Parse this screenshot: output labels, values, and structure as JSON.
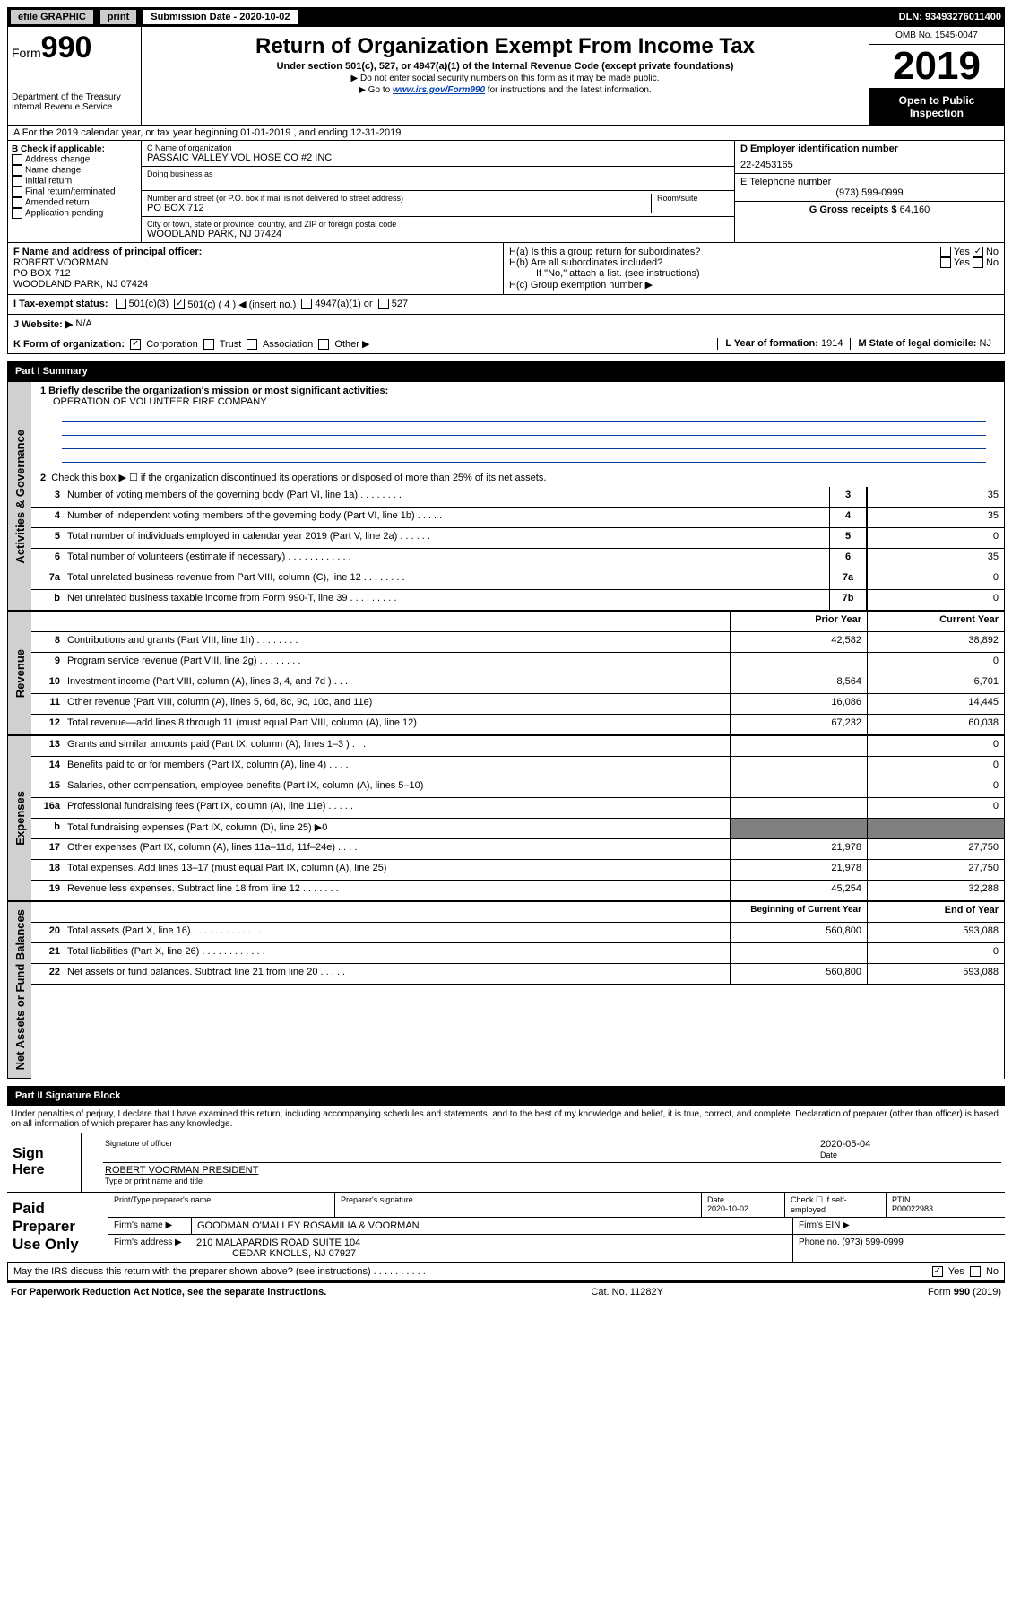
{
  "topbar": {
    "efile": "efile GRAPHIC",
    "print": "print",
    "submission_label": "Submission Date - 2020-10-02",
    "dln": "DLN: 93493276011400"
  },
  "header": {
    "form_prefix": "Form",
    "form_number": "990",
    "dept": "Department of the Treasury",
    "irs": "Internal Revenue Service",
    "title": "Return of Organization Exempt From Income Tax",
    "subtitle": "Under section 501(c), 527, or 4947(a)(1) of the Internal Revenue Code (except private foundations)",
    "note1": "▶ Do not enter social security numbers on this form as it may be made public.",
    "note2_prefix": "▶ Go to ",
    "note2_link": "www.irs.gov/Form990",
    "note2_suffix": " for instructions and the latest information.",
    "omb": "OMB No. 1545-0047",
    "year": "2019",
    "public": "Open to Public Inspection"
  },
  "row_a": "A   For the 2019 calendar year, or tax year beginning 01-01-2019     , and ending 12-31-2019",
  "section_b": {
    "label": "B Check if applicable:",
    "items": [
      "Address change",
      "Name change",
      "Initial return",
      "Final return/terminated",
      "Amended return",
      "Application pending"
    ]
  },
  "section_c": {
    "org_label": "C Name of organization",
    "org_name": "PASSAIC VALLEY VOL HOSE CO #2 INC",
    "dba_label": "Doing business as",
    "street_label": "Number and street (or P.O. box if mail is not delivered to street address)",
    "room_label": "Room/suite",
    "street": "PO BOX 712",
    "city_label": "City or town, state or province, country, and ZIP or foreign postal code",
    "city": "WOODLAND PARK, NJ  07424"
  },
  "section_d": {
    "label": "D Employer identification number",
    "value": "22-2453165"
  },
  "section_e": {
    "label": "E Telephone number",
    "value": "(973) 599-0999"
  },
  "section_g": {
    "label": "G Gross receipts $",
    "value": "64,160"
  },
  "section_f": {
    "label": "F  Name and address of principal officer:",
    "name": "ROBERT VOORMAN",
    "address": "PO BOX 712",
    "city": "WOODLAND PARK, NJ  07424"
  },
  "section_h": {
    "ha_label": "H(a)  Is this a group return for subordinates?",
    "hb_label": "H(b)  Are all subordinates included?",
    "hb_note": "If \"No,\" attach a list. (see instructions)",
    "hc_label": "H(c)  Group exemption number ▶",
    "yes": "Yes",
    "no": "No"
  },
  "section_i": {
    "label": "I   Tax-exempt status:",
    "opt1": "501(c)(3)",
    "opt2": "501(c) ( 4 ) ◀ (insert no.)",
    "opt3": "4947(a)(1) or",
    "opt4": "527"
  },
  "section_j": {
    "label": "J   Website: ▶",
    "value": "N/A"
  },
  "section_k": {
    "label": "K Form of organization:",
    "opts": [
      "Corporation",
      "Trust",
      "Association",
      "Other ▶"
    ]
  },
  "section_l": {
    "label": "L Year of formation:",
    "value": "1914"
  },
  "section_m": {
    "label": "M State of legal domicile:",
    "value": "NJ"
  },
  "part1": {
    "header": "Part I      Summary",
    "line1_label": "1  Briefly describe the organization's mission or most significant activities:",
    "mission": "OPERATION OF VOLUNTEER FIRE COMPANY",
    "line2": "Check this box ▶ ☐  if the organization discontinued its operations or disposed of more than 25% of its net assets.",
    "rows_simple": [
      {
        "n": "3",
        "desc": "Number of voting members of the governing body (Part VI, line 1a)   .     .     .     .     .     .     .     .",
        "r": "3",
        "v": "35"
      },
      {
        "n": "4",
        "desc": "Number of independent voting members of the governing body (Part VI, line 1b)   .     .     .     .     .",
        "r": "4",
        "v": "35"
      },
      {
        "n": "5",
        "desc": "Total number of individuals employed in calendar year 2019 (Part V, line 2a)   .     .     .     .     .     .",
        "r": "5",
        "v": "0"
      },
      {
        "n": "6",
        "desc": "Total number of volunteers (estimate if necessary)   .     .     .     .     .     .     .     .     .     .     .     .",
        "r": "6",
        "v": "35"
      },
      {
        "n": "7a",
        "desc": "Total unrelated business revenue from Part VIII, column (C), line 12   .     .     .     .     .     .     .     .",
        "r": "7a",
        "v": "0"
      },
      {
        "n": "b",
        "desc": "Net unrelated business taxable income from Form 990-T, line 39   .     .     .     .     .     .     .     .     .",
        "r": "7b",
        "v": "0"
      }
    ],
    "col_headers": {
      "prior": "Prior Year",
      "current": "Current Year"
    },
    "revenue_rows": [
      {
        "n": "8",
        "desc": "Contributions and grants (Part VIII, line 1h)   .     .     .     .     .     .     .     .",
        "v1": "42,582",
        "v2": "38,892"
      },
      {
        "n": "9",
        "desc": "Program service revenue (Part VIII, line 2g)   .     .     .     .     .     .     .     .",
        "v1": "",
        "v2": "0"
      },
      {
        "n": "10",
        "desc": "Investment income (Part VIII, column (A), lines 3, 4, and 7d )   .     .     .",
        "v1": "8,564",
        "v2": "6,701"
      },
      {
        "n": "11",
        "desc": "Other revenue (Part VIII, column (A), lines 5, 6d, 8c, 9c, 10c, and 11e)",
        "v1": "16,086",
        "v2": "14,445"
      },
      {
        "n": "12",
        "desc": "Total revenue—add lines 8 through 11 (must equal Part VIII, column (A), line 12)",
        "v1": "67,232",
        "v2": "60,038"
      }
    ],
    "expense_rows": [
      {
        "n": "13",
        "desc": "Grants and similar amounts paid (Part IX, column (A), lines 1–3 )   .     .     .",
        "v1": "",
        "v2": "0"
      },
      {
        "n": "14",
        "desc": "Benefits paid to or for members (Part IX, column (A), line 4)   .     .     .     .",
        "v1": "",
        "v2": "0"
      },
      {
        "n": "15",
        "desc": "Salaries, other compensation, employee benefits (Part IX, column (A), lines 5–10)",
        "v1": "",
        "v2": "0"
      },
      {
        "n": "16a",
        "desc": "Professional fundraising fees (Part IX, column (A), line 11e)   .     .     .     .     .",
        "v1": "",
        "v2": "0"
      },
      {
        "n": "b",
        "desc": "Total fundraising expenses (Part IX, column (D), line 25) ▶0",
        "v1": "grey",
        "v2": "grey"
      },
      {
        "n": "17",
        "desc": "Other expenses (Part IX, column (A), lines 11a–11d, 11f–24e)   .     .     .     .",
        "v1": "21,978",
        "v2": "27,750"
      },
      {
        "n": "18",
        "desc": "Total expenses. Add lines 13–17 (must equal Part IX, column (A), line 25)",
        "v1": "21,978",
        "v2": "27,750"
      },
      {
        "n": "19",
        "desc": "Revenue less expenses. Subtract line 18 from line 12   .     .     .     .     .     .     .",
        "v1": "45,254",
        "v2": "32,288"
      }
    ],
    "net_headers": {
      "begin": "Beginning of Current Year",
      "end": "End of Year"
    },
    "net_rows": [
      {
        "n": "20",
        "desc": "Total assets (Part X, line 16)   .     .     .     .     .     .     .     .     .     .     .     .     .",
        "v1": "560,800",
        "v2": "593,088"
      },
      {
        "n": "21",
        "desc": "Total liabilities (Part X, line 26)   .     .     .     .     .     .     .     .     .     .     .     .",
        "v1": "",
        "v2": "0"
      },
      {
        "n": "22",
        "desc": "Net assets or fund balances. Subtract line 21 from line 20   .     .     .     .     .",
        "v1": "560,800",
        "v2": "593,088"
      }
    ],
    "vtabs": {
      "governance": "Activities & Governance",
      "revenue": "Revenue",
      "expenses": "Expenses",
      "net": "Net Assets or Fund Balances"
    }
  },
  "part2": {
    "header": "Part II     Signature Block",
    "penalties": "Under penalties of perjury, I declare that I have examined this return, including accompanying schedules and statements, and to the best of my knowledge and belief, it is true, correct, and complete. Declaration of preparer (other than officer) is based on all information of which preparer has any knowledge."
  },
  "sign": {
    "label": "Sign Here",
    "sig_label": "Signature of officer",
    "date": "2020-05-04",
    "date_label": "Date",
    "name": "ROBERT VOORMAN  PRESIDENT",
    "name_label": "Type or print name and title"
  },
  "preparer": {
    "label": "Paid Preparer Use Only",
    "col_print": "Print/Type preparer's name",
    "col_sig": "Preparer's signature",
    "col_date": "Date",
    "date_val": "2020-10-02",
    "check_label": "Check ☐ if self-employed",
    "ptin_label": "PTIN",
    "ptin": "P00022983",
    "firm_name_label": "Firm's name     ▶",
    "firm_name": "GOODMAN O'MALLEY ROSAMILIA & VOORMAN",
    "firm_ein_label": "Firm's EIN ▶",
    "firm_addr_label": "Firm's address ▶",
    "firm_addr1": "210 MALAPARDIS ROAD SUITE 104",
    "firm_addr2": "CEDAR KNOLLS, NJ  07927",
    "phone_label": "Phone no.",
    "phone": "(973) 599-0999"
  },
  "discuss": {
    "text": "May the IRS discuss this return with the preparer shown above? (see instructions)   .     .     .     .     .     .     .     .     .     .",
    "yes": "Yes",
    "no": "No"
  },
  "footer": {
    "left": "For Paperwork Reduction Act Notice, see the separate instructions.",
    "center": "Cat. No. 11282Y",
    "right": "Form 990 (2019)"
  }
}
